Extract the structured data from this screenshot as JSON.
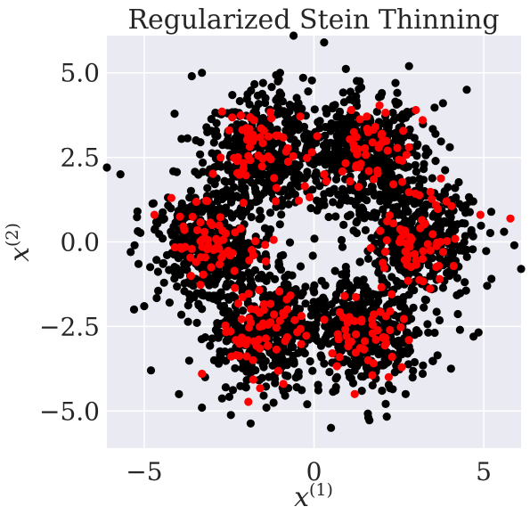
{
  "chart_data": {
    "type": "scatter",
    "title": "Regularized Stein Thinning",
    "xlabel": {
      "base": "x",
      "sup": "(1)"
    },
    "ylabel": {
      "base": "x",
      "sup": "(2)"
    },
    "xlim": [
      -6.1,
      6.1
    ],
    "ylim": [
      -6.1,
      6.1
    ],
    "xticks": [
      -5,
      0,
      5
    ],
    "xtick_labels": [
      "−5",
      "0",
      "5"
    ],
    "yticks": [
      5.0,
      2.5,
      0.0,
      -2.5,
      -5.0
    ],
    "ytick_labels": [
      "5.0",
      "2.5",
      "0.0",
      "−2.5",
      "−5.0"
    ],
    "grid": true,
    "background": "#eaeaf2",
    "series": [
      {
        "color": "#000000",
        "generator": {
          "kind": "gaussian-mixture-ring",
          "n_points": 2600,
          "ring_radius": 3.0,
          "n_modes": 6,
          "mode_angles_deg": [
            60,
            120,
            180,
            240,
            300,
            360
          ],
          "std": 0.85,
          "seed": 7
        },
        "values": [
          [
            -6.1,
            2.2
          ],
          [
            -5.7,
            2.0
          ],
          [
            -5.3,
            -2.0
          ],
          [
            -5.0,
            -1.9
          ],
          [
            -4.8,
            -3.8
          ],
          [
            -0.6,
            6.1
          ],
          [
            0.3,
            5.9
          ],
          [
            2.8,
            5.2
          ],
          [
            4.5,
            4.5
          ],
          [
            3.8,
            4.1
          ],
          [
            5.9,
            -0.1
          ],
          [
            6.1,
            -0.8
          ],
          [
            5.6,
            0.3
          ],
          [
            4.6,
            1.2
          ],
          [
            4.3,
            -2.6
          ],
          [
            0.5,
            -5.5
          ],
          [
            1.6,
            -5.2
          ],
          [
            -1.4,
            -4.9
          ],
          [
            -3.3,
            -4.9
          ],
          [
            -0.2,
            -4.8
          ],
          [
            -4.6,
            0.7
          ],
          [
            -3.3,
            5.0
          ],
          [
            -3.6,
            4.9
          ],
          [
            -1.0,
            5.0
          ],
          [
            -1.5,
            4.7
          ],
          [
            2.0,
            4.4
          ],
          [
            2.4,
            4.7
          ],
          [
            4.0,
            2.8
          ],
          [
            -5.2,
            0.9
          ],
          [
            -5.4,
            -0.3
          ],
          [
            5.1,
            -1.3
          ],
          [
            4.7,
            -2.8
          ],
          [
            3.2,
            -3.9
          ],
          [
            2.7,
            -4.5
          ],
          [
            -2.6,
            -4.3
          ]
        ]
      },
      {
        "color": "#ff0000",
        "generator": {
          "kind": "gaussian-mixture-ring",
          "n_points": 330,
          "ring_radius": 3.0,
          "n_modes": 6,
          "mode_angles_deg": [
            60,
            120,
            180,
            240,
            300,
            360
          ],
          "std": 0.65,
          "seed": 42
        },
        "values": [
          [
            -4.7,
            0.8
          ],
          [
            -4.2,
            1.3
          ],
          [
            -3.3,
            -3.9
          ],
          [
            -0.9,
            -4.2
          ],
          [
            1.2,
            -4.5
          ],
          [
            2.2,
            -4.0
          ],
          [
            3.0,
            3.9
          ],
          [
            3.2,
            3.6
          ],
          [
            4.9,
            0.8
          ],
          [
            3.9,
            1.2
          ],
          [
            -1.8,
            3.0
          ],
          [
            -2.5,
            3.3
          ],
          [
            1.1,
            3.9
          ],
          [
            2.0,
            3.2
          ],
          [
            2.6,
            2.4
          ],
          [
            -3.0,
            0.5
          ],
          [
            -3.9,
            -0.2
          ],
          [
            3.2,
            -0.5
          ],
          [
            3.7,
            -1.1
          ],
          [
            -1.6,
            -2.1
          ],
          [
            -0.8,
            -1.7
          ],
          [
            1.4,
            -2.3
          ],
          [
            0.9,
            -1.6
          ],
          [
            -2.3,
            -2.9
          ],
          [
            2.3,
            -3.4
          ]
        ]
      }
    ]
  }
}
